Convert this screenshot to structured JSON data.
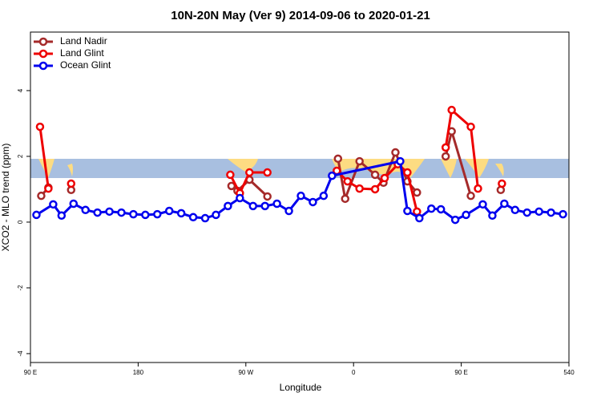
{
  "chart_data": {
    "type": "line",
    "title": "10N-20N May (Ver 9)   2014-09-06 to 2020-01-21",
    "xlabel": "Longitude",
    "ylabel": "XCO2 - MLO trend (ppm)",
    "xlim": [
      90,
      540
    ],
    "ylim": [
      -4.27,
      5.78
    ],
    "xticks": [
      {
        "value": 90,
        "label": "90 E"
      },
      180,
      {
        "value": 270,
        "label": "90 W"
      },
      {
        "value": 360,
        "label": "0"
      },
      {
        "value": 450,
        "label": "90 E"
      },
      540
    ],
    "yticks": [
      -4,
      -2,
      0,
      2,
      4
    ],
    "legend": "top-left",
    "series": [
      {
        "name": "Land Nadir",
        "color": "#a52a2a",
        "x": [
          99,
          105,
          null,
          124,
          null,
          258,
          263,
          273,
          288,
          null,
          347,
          353,
          365,
          378,
          385,
          395,
          405,
          413,
          null,
          437,
          442,
          458,
          null,
          483
        ],
        "values": [
          0.8,
          1.05,
          null,
          0.98,
          null,
          1.1,
          0.95,
          1.29,
          0.78,
          null,
          1.93,
          0.71,
          1.85,
          1.44,
          1.2,
          2.12,
          1.24,
          0.9,
          null,
          2.0,
          2.76,
          0.8,
          null,
          0.98
        ]
      },
      {
        "name": "Land Glint",
        "color": "#ee0000",
        "x": [
          98,
          105,
          null,
          124,
          null,
          257,
          265,
          273,
          288,
          null,
          346,
          355,
          365,
          378,
          386,
          397,
          405,
          413,
          null,
          437,
          442,
          458,
          464,
          null,
          484
        ],
        "values": [
          2.9,
          1.02,
          null,
          1.17,
          null,
          1.44,
          0.88,
          1.51,
          1.51,
          null,
          1.56,
          1.24,
          1.02,
          1.0,
          1.34,
          1.76,
          1.51,
          0.32,
          null,
          2.27,
          3.41,
          2.9,
          1.02,
          null,
          1.17
        ]
      },
      {
        "name": "Ocean Glint",
        "color": "#0000ee",
        "x": [
          95,
          109,
          116,
          126,
          136,
          146,
          156,
          166,
          176,
          186,
          196,
          206,
          216,
          226,
          236,
          245,
          255,
          265,
          276,
          286,
          296,
          306,
          316,
          326,
          335,
          342,
          399,
          405,
          415,
          425,
          433,
          445,
          454,
          468,
          476,
          486,
          495,
          505,
          515,
          525,
          535
        ],
        "values": [
          0.22,
          0.54,
          0.2,
          0.56,
          0.37,
          0.29,
          0.32,
          0.29,
          0.24,
          0.22,
          0.24,
          0.34,
          0.27,
          0.15,
          0.12,
          0.22,
          0.49,
          0.73,
          0.49,
          0.49,
          0.56,
          0.34,
          0.8,
          0.61,
          0.8,
          1.41,
          1.85,
          0.34,
          0.12,
          0.41,
          0.39,
          0.07,
          0.22,
          0.54,
          0.2,
          0.56,
          0.37,
          0.29,
          0.32,
          0.29,
          0.24
        ]
      }
    ]
  }
}
